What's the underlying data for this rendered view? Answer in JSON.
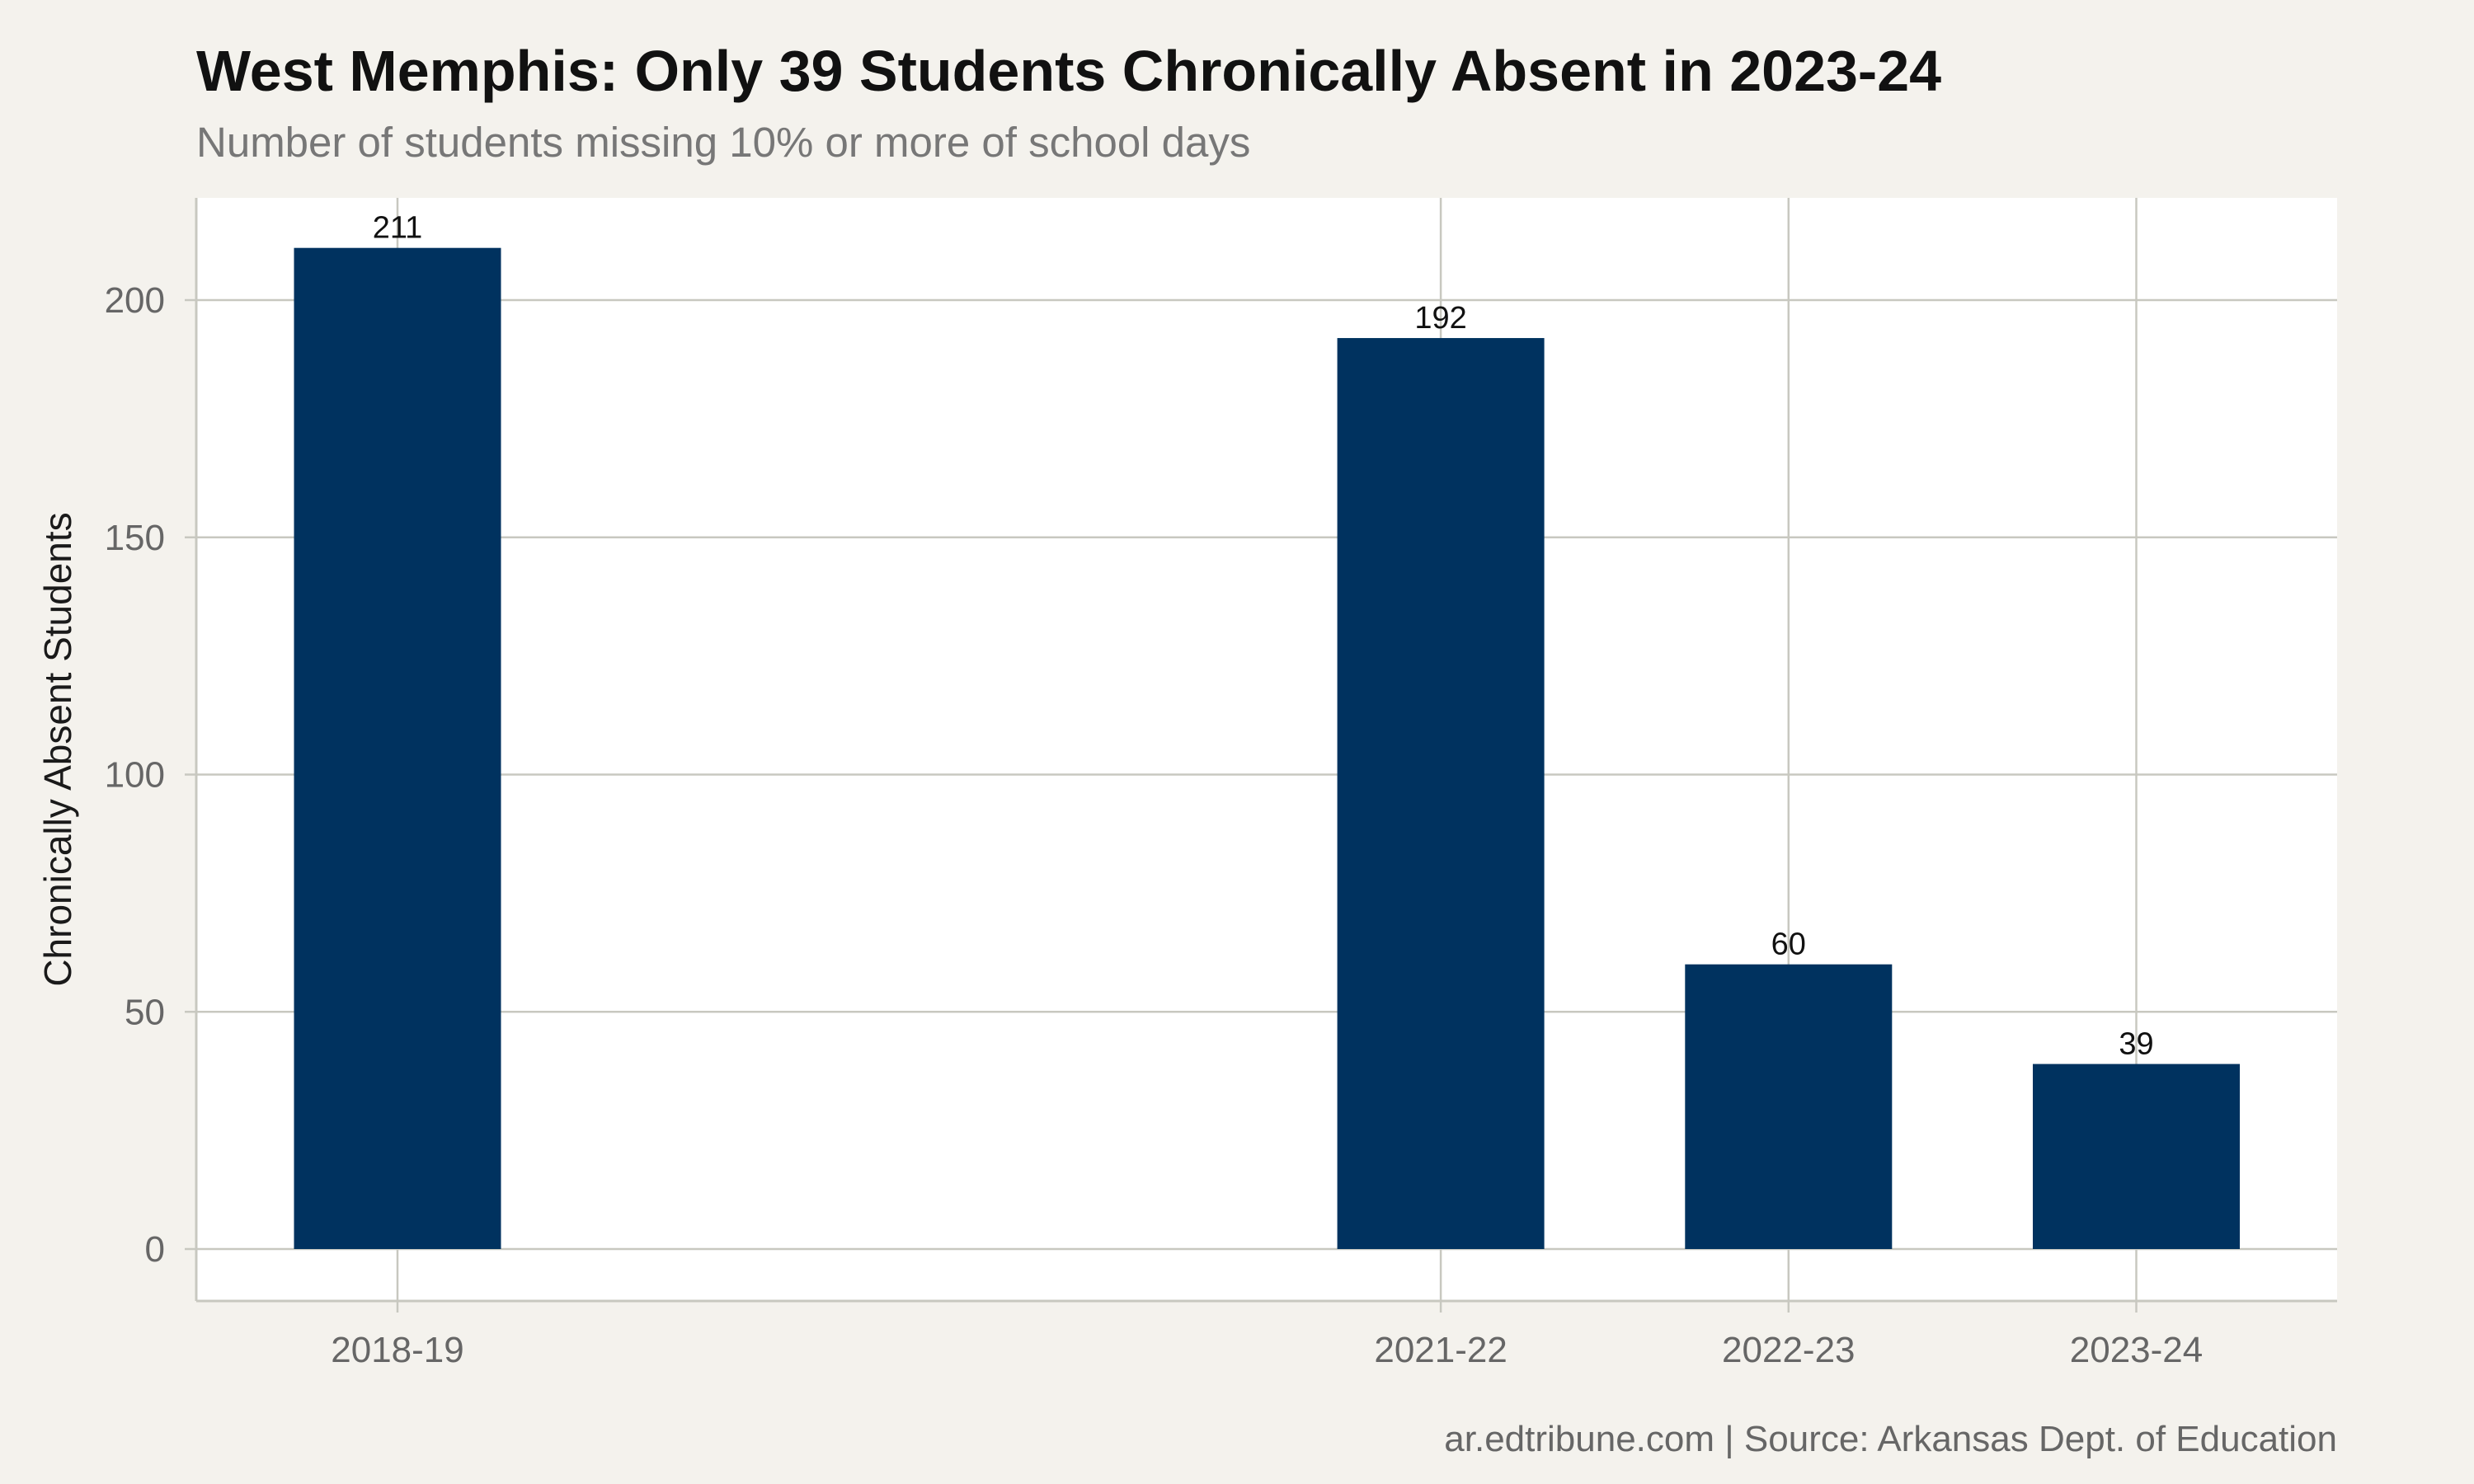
{
  "chart_data": {
    "type": "bar",
    "title": "West Memphis: Only 39 Students Chronically Absent in 2023-24",
    "subtitle": "Number of students missing 10% or more of school days",
    "xlabel": "",
    "ylabel": "Chronically Absent Students",
    "x_axis": {
      "type": "school-year",
      "range": [
        "2018-19",
        "2023-24"
      ],
      "ticks": [
        "2018-19",
        "2021-22",
        "2022-23",
        "2023-24"
      ]
    },
    "categories": [
      "2018-19",
      "2021-22",
      "2022-23",
      "2023-24"
    ],
    "values": [
      211,
      192,
      60,
      39
    ],
    "data_labels": [
      "211",
      "192",
      "60",
      "39"
    ],
    "ylim": [
      0,
      221
    ],
    "y_ticks": [
      0,
      50,
      100,
      150,
      200
    ],
    "y_tick_labels": [
      "0",
      "50",
      "100",
      "150",
      "200"
    ],
    "grid": true,
    "legend": "none",
    "bar_color": "#00325f",
    "caption": "ar.edtribune.com | Source: Arkansas Dept. of Education"
  },
  "colors": {
    "background": "#f4f2ed",
    "panel": "#ffffff",
    "grid": "#c8c8c0",
    "bar": "#00325f"
  }
}
